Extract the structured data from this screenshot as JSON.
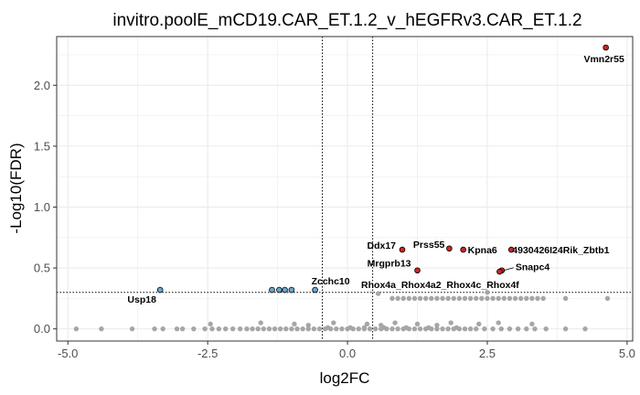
{
  "chart_data": {
    "type": "scatter",
    "title": "invitro.poolE_mCD19.CAR_ET.1.2_v_hEGFRv3.CAR_ET.1.2",
    "xlabel": "log2FC",
    "ylabel": "-Log10(FDR)",
    "xlim": [
      -5.2,
      5.1
    ],
    "ylim": [
      -0.1,
      2.4
    ],
    "xticks": [
      -5.0,
      -2.5,
      0.0,
      2.5,
      5.0
    ],
    "xtick_labels": [
      "-5.0",
      "-2.5",
      "0.0",
      "2.5",
      "5.0"
    ],
    "yticks": [
      0.0,
      0.5,
      1.0,
      1.5,
      2.0
    ],
    "ytick_labels": [
      "0.0",
      "0.5",
      "1.0",
      "1.5",
      "2.0"
    ],
    "grid": true,
    "fc_threshold": [
      -0.45,
      0.45
    ],
    "fdr_threshold": 0.3,
    "colors": {
      "background": "#ffffff",
      "grid": "#ebebeb",
      "panel_border": "#333333",
      "nonsig": "#a6a6a6",
      "up": "#cd2626",
      "down": "#6ca6cd",
      "threshold_line": "#000000"
    },
    "series": [
      {
        "group": "up",
        "points": [
          {
            "x": 4.62,
            "y": 2.31,
            "label": "Vmn2r55"
          },
          {
            "x": 0.98,
            "y": 0.65,
            "label": "Ddx17"
          },
          {
            "x": 1.82,
            "y": 0.66,
            "label": "Prss55"
          },
          {
            "x": 2.07,
            "y": 0.65,
            "label": "Kpna6"
          },
          {
            "x": 2.93,
            "y": 0.65,
            "label": "4930426I24Rik_Zbtb1"
          },
          {
            "x": 1.25,
            "y": 0.48,
            "label": "Mrgprb13"
          },
          {
            "x": 2.76,
            "y": 0.48,
            "label": "Snapc4"
          },
          {
            "x": 2.72,
            "y": 0.47,
            "label": "Rhox4a_Rhox4a2_Rhox4c_Rhox4f"
          }
        ]
      },
      {
        "group": "down",
        "points": [
          {
            "x": -3.35,
            "y": 0.32,
            "label": "Usp18"
          },
          {
            "x": -0.58,
            "y": 0.32,
            "label": "Zcchc10"
          },
          {
            "x": -1.35,
            "y": 0.32,
            "label": ""
          },
          {
            "x": -1.22,
            "y": 0.32,
            "label": ""
          },
          {
            "x": -1.12,
            "y": 0.32,
            "label": ""
          },
          {
            "x": -1.0,
            "y": 0.32,
            "label": ""
          }
        ]
      },
      {
        "group": "nonsig",
        "points": [
          {
            "x": -4.85,
            "y": 0.0
          },
          {
            "x": -4.4,
            "y": 0.0
          },
          {
            "x": -3.85,
            "y": 0.0
          },
          {
            "x": -3.45,
            "y": 0.0
          },
          {
            "x": -3.3,
            "y": 0.0
          },
          {
            "x": -3.05,
            "y": 0.0
          },
          {
            "x": -2.95,
            "y": 0.0
          },
          {
            "x": -2.75,
            "y": 0.0
          },
          {
            "x": -2.55,
            "y": 0.0
          },
          {
            "x": -2.42,
            "y": 0.0
          },
          {
            "x": -2.3,
            "y": 0.0
          },
          {
            "x": -2.18,
            "y": 0.0
          },
          {
            "x": -2.05,
            "y": 0.0
          },
          {
            "x": -1.92,
            "y": 0.0
          },
          {
            "x": -1.8,
            "y": 0.0
          },
          {
            "x": -1.7,
            "y": 0.0
          },
          {
            "x": -1.6,
            "y": 0.0
          },
          {
            "x": -1.5,
            "y": 0.0
          },
          {
            "x": -1.4,
            "y": 0.0
          },
          {
            "x": -1.3,
            "y": 0.0
          },
          {
            "x": -1.2,
            "y": 0.0
          },
          {
            "x": -1.1,
            "y": 0.0
          },
          {
            "x": -1.0,
            "y": 0.0
          },
          {
            "x": -0.9,
            "y": 0.0
          },
          {
            "x": -0.8,
            "y": 0.0
          },
          {
            "x": -0.7,
            "y": 0.0
          },
          {
            "x": -0.6,
            "y": 0.0
          },
          {
            "x": -0.5,
            "y": 0.0
          },
          {
            "x": -0.4,
            "y": 0.0
          },
          {
            "x": -0.3,
            "y": 0.0
          },
          {
            "x": -0.2,
            "y": 0.0
          },
          {
            "x": -0.1,
            "y": 0.0
          },
          {
            "x": 0.0,
            "y": 0.0
          },
          {
            "x": 0.1,
            "y": 0.0
          },
          {
            "x": 0.2,
            "y": 0.0
          },
          {
            "x": 0.3,
            "y": 0.0
          },
          {
            "x": 0.4,
            "y": 0.0
          },
          {
            "x": 0.5,
            "y": 0.0
          },
          {
            "x": 0.6,
            "y": 0.0
          },
          {
            "x": 0.7,
            "y": 0.0
          },
          {
            "x": 0.8,
            "y": 0.0
          },
          {
            "x": 0.9,
            "y": 0.0
          },
          {
            "x": 1.0,
            "y": 0.0
          },
          {
            "x": 1.1,
            "y": 0.0
          },
          {
            "x": 1.2,
            "y": 0.0
          },
          {
            "x": 1.3,
            "y": 0.0
          },
          {
            "x": 1.4,
            "y": 0.0
          },
          {
            "x": 1.5,
            "y": 0.0
          },
          {
            "x": 1.6,
            "y": 0.0
          },
          {
            "x": 1.7,
            "y": 0.0
          },
          {
            "x": 1.8,
            "y": 0.0
          },
          {
            "x": 1.9,
            "y": 0.0
          },
          {
            "x": 2.0,
            "y": 0.0
          },
          {
            "x": 2.1,
            "y": 0.0
          },
          {
            "x": 2.2,
            "y": 0.0
          },
          {
            "x": 2.3,
            "y": 0.0
          },
          {
            "x": 2.45,
            "y": 0.0
          },
          {
            "x": 2.6,
            "y": 0.0
          },
          {
            "x": 2.75,
            "y": 0.0
          },
          {
            "x": 2.9,
            "y": 0.0
          },
          {
            "x": 3.05,
            "y": 0.0
          },
          {
            "x": 3.2,
            "y": 0.0
          },
          {
            "x": 3.35,
            "y": 0.0
          },
          {
            "x": 3.55,
            "y": 0.0
          },
          {
            "x": 3.9,
            "y": 0.0
          },
          {
            "x": 4.25,
            "y": 0.0
          },
          {
            "x": -0.35,
            "y": 0.01
          },
          {
            "x": 0.05,
            "y": 0.01
          },
          {
            "x": 0.3,
            "y": 0.01
          },
          {
            "x": 0.65,
            "y": 0.01
          },
          {
            "x": 1.05,
            "y": 0.01
          },
          {
            "x": 1.45,
            "y": 0.01
          },
          {
            "x": 1.95,
            "y": 0.01
          },
          {
            "x": -2.45,
            "y": 0.04
          },
          {
            "x": -1.55,
            "y": 0.05
          },
          {
            "x": -0.95,
            "y": 0.04
          },
          {
            "x": -0.25,
            "y": 0.05
          },
          {
            "x": 0.35,
            "y": 0.04
          },
          {
            "x": 0.85,
            "y": 0.05
          },
          {
            "x": 1.25,
            "y": 0.04
          },
          {
            "x": 1.85,
            "y": 0.05
          },
          {
            "x": 2.35,
            "y": 0.04
          },
          {
            "x": 2.7,
            "y": 0.05
          },
          {
            "x": 3.3,
            "y": 0.04
          },
          {
            "x": -0.7,
            "y": 0.03
          },
          {
            "x": 0.6,
            "y": 0.03
          },
          {
            "x": 1.6,
            "y": 0.03
          },
          {
            "x": 0.8,
            "y": 0.25
          },
          {
            "x": 0.9,
            "y": 0.25
          },
          {
            "x": 1.0,
            "y": 0.25
          },
          {
            "x": 1.1,
            "y": 0.25
          },
          {
            "x": 1.2,
            "y": 0.25
          },
          {
            "x": 1.3,
            "y": 0.25
          },
          {
            "x": 1.4,
            "y": 0.25
          },
          {
            "x": 1.5,
            "y": 0.25
          },
          {
            "x": 1.6,
            "y": 0.25
          },
          {
            "x": 1.7,
            "y": 0.25
          },
          {
            "x": 1.8,
            "y": 0.25
          },
          {
            "x": 1.9,
            "y": 0.25
          },
          {
            "x": 2.0,
            "y": 0.25
          },
          {
            "x": 2.1,
            "y": 0.25
          },
          {
            "x": 2.2,
            "y": 0.25
          },
          {
            "x": 2.3,
            "y": 0.25
          },
          {
            "x": 2.4,
            "y": 0.25
          },
          {
            "x": 2.5,
            "y": 0.25
          },
          {
            "x": 2.6,
            "y": 0.25
          },
          {
            "x": 2.7,
            "y": 0.25
          },
          {
            "x": 2.8,
            "y": 0.25
          },
          {
            "x": 2.9,
            "y": 0.25
          },
          {
            "x": 3.0,
            "y": 0.25
          },
          {
            "x": 3.1,
            "y": 0.25
          },
          {
            "x": 3.2,
            "y": 0.25
          },
          {
            "x": 3.3,
            "y": 0.25
          },
          {
            "x": 3.4,
            "y": 0.25
          },
          {
            "x": 3.5,
            "y": 0.25
          },
          {
            "x": 3.9,
            "y": 0.25
          },
          {
            "x": 4.65,
            "y": 0.25
          },
          {
            "x": 2.5,
            "y": 0.3
          },
          {
            "x": 0.55,
            "y": 0.29
          }
        ]
      }
    ]
  }
}
